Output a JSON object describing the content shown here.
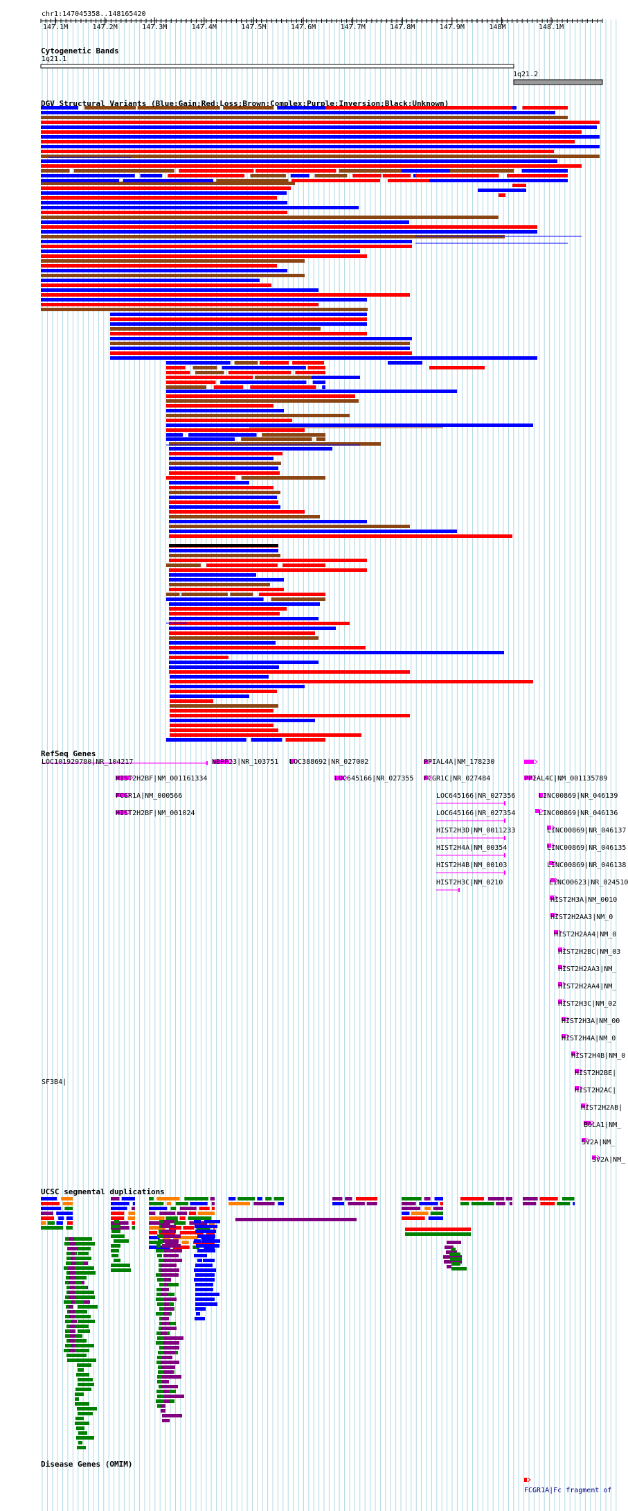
{
  "location": "chr1:147045358..148165420",
  "ruler": {
    "ticks": [
      "147.1M",
      "147.2M",
      "147.3M",
      "147.4M",
      "147.5M",
      "147.6M",
      "147.7M",
      "147.8M",
      "147.9M",
      "148M",
      "148.1M"
    ]
  },
  "tracks": {
    "cytobands": {
      "title": "Cytogenetic Bands",
      "bands": [
        {
          "label": "1q21.1"
        },
        {
          "label": "1q21.2"
        }
      ]
    },
    "dgv": {
      "title": "DGV Structural Variants (Blue:Gain;Red:Loss;Brown:Complex;Purple:Inversion;Black:Unknown)"
    },
    "refseq": {
      "title": "RefSeq Genes",
      "genes": [
        "LOC101929780|NR_104217",
        "NBPF23|NR_103751",
        "LOC388692|NR_027002",
        "PPIAL4A|NM_178230",
        "HIST2H2BF|NM_001161334",
        "LOC645166|NR_027355",
        "FCGR1C|NR_027484",
        "PPIAL4C|NM_001135789",
        "FCGR1A|NM_000566",
        "LOC645166|NR_027356",
        "LINC00869|NR_046139",
        "HIST2H2BF|NM_001024",
        "LOC645166|NR_027354",
        "LINC00869|NR_046136",
        "HIST2H3D|NM_0011233",
        "LINC00869|NR_046137",
        "HIST2H4A|NM_00354",
        "LINC00869|NR_046135",
        "HIST2H4B|NM_00103",
        "LINC00869|NR_046138",
        "HIST2H3C|NM_0210",
        "LINC00623|NR_024510",
        "HIST2H3A|NM_0010",
        "HIST2H2AA3|NM_0",
        "HIST2H2AA4|NM_0",
        "HIST2H2BC|NM_03",
        "HIST2H2AA3|NM_",
        "HIST2H2AA4|NM_",
        "HIST2H3C|NM_02",
        "HIST2H3A|NM_00",
        "HIST2H4A|NM_0",
        "HIST2H4B|NM_0",
        "HIST2H2BE|",
        "HIST2H2AC|",
        "HIST2H2AB|",
        "BOLA1|NM_",
        "SV2A|NM_",
        "SV2A|NM_",
        "SF3B4|"
      ]
    },
    "segdups": {
      "title": "UCSC segmental duplications"
    },
    "omim": {
      "title": "Disease Genes (OMIM)",
      "feature_label": "FCGR1A|Fc fragment of"
    }
  },
  "colors": {
    "gain": "#0000ff",
    "loss": "#ff0000",
    "complex": "#8b4513",
    "inversion": "#800080",
    "unknown": "#000000",
    "gene": "#ff00ff",
    "grid": "#add8e6",
    "seg_green": "#008000",
    "seg_orange": "#ff8000"
  }
}
